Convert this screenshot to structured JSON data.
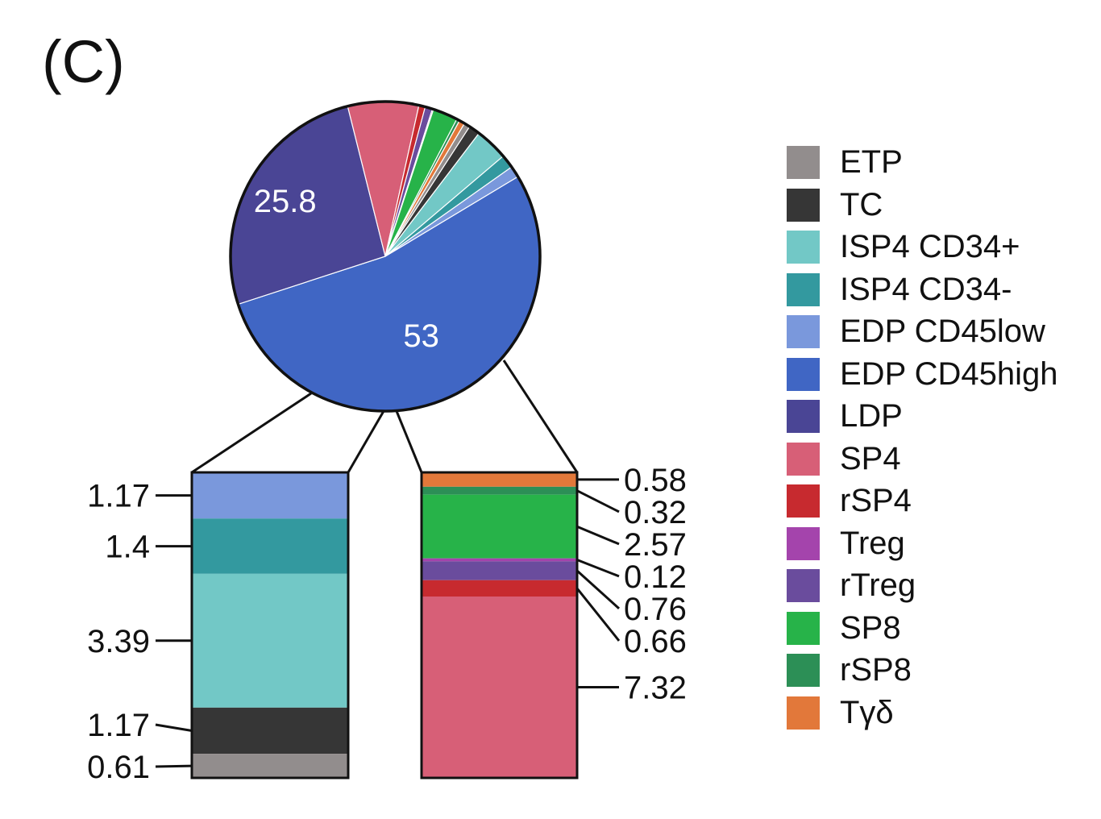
{
  "panel_label": "(C)",
  "chart_data": {
    "type": "pie",
    "title": "",
    "colors": {
      "ETP": "#928d8d",
      "TC": "#363636",
      "ISP4 CD34+": "#72c8c6",
      "ISP4 CD34-": "#33999f",
      "EDP CD45low": "#7a98dc",
      "EDP CD45high": "#4066c4",
      "LDP": "#4a4595",
      "SP4": "#d75f77",
      "rSP4": "#c72a2f",
      "Treg": "#a444ac",
      "rTreg": "#6a4c9d",
      "SP8": "#27b349",
      "rSP8": "#2c8f56",
      "Tγδ": "#e2783a"
    },
    "legend": [
      "ETP",
      "TC",
      "ISP4 CD34+",
      "ISP4 CD34-",
      "EDP CD45low",
      "EDP CD45high",
      "LDP",
      "SP4",
      "rSP4",
      "Treg",
      "rTreg",
      "SP8",
      "rSP8",
      "Tγδ"
    ],
    "pie": {
      "slices": [
        {
          "name": "EDP CD45high",
          "value": 53,
          "label": "53"
        },
        {
          "name": "LDP",
          "value": 25.8,
          "label": "25.8"
        },
        {
          "name": "SP4",
          "value": 7.32,
          "label": ""
        },
        {
          "name": "rSP4",
          "value": 0.66,
          "label": ""
        },
        {
          "name": "rTreg",
          "value": 0.76,
          "label": ""
        },
        {
          "name": "Treg",
          "value": 0.12,
          "label": ""
        },
        {
          "name": "SP8",
          "value": 2.57,
          "label": ""
        },
        {
          "name": "rSP8",
          "value": 0.32,
          "label": ""
        },
        {
          "name": "Tγδ",
          "value": 0.58,
          "label": ""
        },
        {
          "name": "ETP",
          "value": 0.61,
          "label": ""
        },
        {
          "name": "TC",
          "value": 1.17,
          "label": ""
        },
        {
          "name": "ISP4 CD34+",
          "value": 3.39,
          "label": ""
        },
        {
          "name": "ISP4 CD34-",
          "value": 1.4,
          "label": ""
        },
        {
          "name": "EDP CD45low",
          "value": 1.17,
          "label": ""
        }
      ]
    },
    "left_bar": {
      "segments": [
        {
          "name": "EDP CD45low",
          "value": 1.17,
          "label": "1.17"
        },
        {
          "name": "ISP4 CD34-",
          "value": 1.4,
          "label": "1.4"
        },
        {
          "name": "ISP4 CD34+",
          "value": 3.39,
          "label": "3.39"
        },
        {
          "name": "TC",
          "value": 1.17,
          "label": "1.17"
        },
        {
          "name": "ETP",
          "value": 0.61,
          "label": "0.61"
        }
      ]
    },
    "right_bar": {
      "segments": [
        {
          "name": "Tγδ",
          "value": 0.58,
          "label": "0.58"
        },
        {
          "name": "rSP8",
          "value": 0.32,
          "label": "0.32"
        },
        {
          "name": "SP8",
          "value": 2.57,
          "label": "2.57"
        },
        {
          "name": "Treg",
          "value": 0.12,
          "label": "0.12"
        },
        {
          "name": "rTreg",
          "value": 0.76,
          "label": "0.76"
        },
        {
          "name": "rSP4",
          "value": 0.66,
          "label": "0.66"
        },
        {
          "name": "SP4",
          "value": 7.32,
          "label": "7.32"
        }
      ]
    }
  }
}
